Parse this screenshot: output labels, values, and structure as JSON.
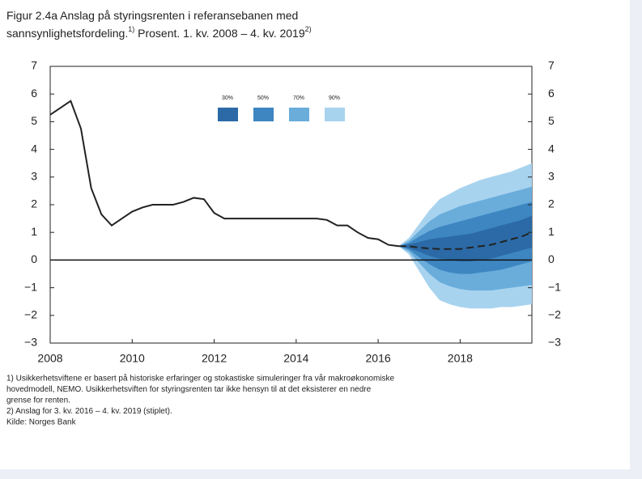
{
  "chart_data": {
    "type": "fan",
    "title": {
      "line1": "Figur 2.4a Anslag på styringsrenten i referansebanen med",
      "line2": "sannsynlighetsfordeling.",
      "sup1": "1)",
      "line2b": " Prosent. 1. kv. 2008 – 4. kv. 2019",
      "sup2": "2)"
    },
    "x": [
      2008,
      2008.25,
      2008.5,
      2008.75,
      2009,
      2009.25,
      2009.5,
      2009.75,
      2010,
      2010.25,
      2010.5,
      2010.75,
      2011,
      2011.25,
      2011.5,
      2011.75,
      2012,
      2012.25,
      2012.5,
      2012.75,
      2013,
      2013.25,
      2013.5,
      2013.75,
      2014,
      2014.25,
      2014.5,
      2014.75,
      2015,
      2015.25,
      2015.5,
      2015.75,
      2016,
      2016.25,
      2016.5,
      2016.75,
      2017,
      2017.25,
      2017.5,
      2017.75,
      2018,
      2018.25,
      2018.5,
      2018.75,
      2019,
      2019.25,
      2019.5,
      2019.75
    ],
    "series": [
      {
        "color": "#222222",
        "dashed": false,
        "values": [
          5.25,
          5.5,
          5.75,
          4.75,
          2.6,
          1.65,
          1.25,
          1.5,
          1.75,
          1.9,
          2.0,
          2.0,
          2.0,
          2.1,
          2.25,
          2.2,
          1.7,
          1.5,
          1.5,
          1.5,
          1.5,
          1.5,
          1.5,
          1.5,
          1.5,
          1.5,
          1.5,
          1.45,
          1.25,
          1.25,
          1.0,
          0.8,
          0.75,
          0.55,
          0.5,
          null,
          null,
          null,
          null,
          null,
          null,
          null,
          null,
          null,
          null,
          null,
          null,
          null
        ]
      },
      {
        "color": "#222222",
        "dashed": true,
        "values": [
          null,
          null,
          null,
          null,
          null,
          null,
          null,
          null,
          null,
          null,
          null,
          null,
          null,
          null,
          null,
          null,
          null,
          null,
          null,
          null,
          null,
          null,
          null,
          null,
          null,
          null,
          null,
          null,
          null,
          null,
          null,
          null,
          null,
          null,
          0.5,
          0.5,
          0.45,
          0.42,
          0.4,
          0.4,
          0.4,
          0.45,
          0.5,
          0.55,
          0.65,
          0.75,
          0.85,
          1.0
        ]
      }
    ],
    "bands": [
      {
        "name": "30%",
        "color": "#2b6aa6",
        "upper": [
          null,
          null,
          null,
          null,
          null,
          null,
          null,
          null,
          null,
          null,
          null,
          null,
          null,
          null,
          null,
          null,
          null,
          null,
          null,
          null,
          null,
          null,
          null,
          null,
          null,
          null,
          null,
          null,
          null,
          null,
          null,
          null,
          null,
          null,
          0.5,
          0.57,
          0.65,
          0.75,
          0.8,
          0.85,
          0.9,
          0.95,
          1.05,
          1.15,
          1.25,
          1.35,
          1.45,
          1.6
        ],
        "lower": [
          null,
          null,
          null,
          null,
          null,
          null,
          null,
          null,
          null,
          null,
          null,
          null,
          null,
          null,
          null,
          null,
          null,
          null,
          null,
          null,
          null,
          null,
          null,
          null,
          null,
          null,
          null,
          null,
          null,
          null,
          null,
          null,
          null,
          null,
          0.5,
          0.43,
          0.3,
          0.15,
          0.05,
          0.0,
          -0.05,
          -0.05,
          0.0,
          0.05,
          0.15,
          0.25,
          0.35,
          0.45
        ]
      },
      {
        "name": "50%",
        "color": "#3d86c2",
        "upper": [
          null,
          null,
          null,
          null,
          null,
          null,
          null,
          null,
          null,
          null,
          null,
          null,
          null,
          null,
          null,
          null,
          null,
          null,
          null,
          null,
          null,
          null,
          null,
          null,
          null,
          null,
          null,
          null,
          null,
          null,
          null,
          null,
          null,
          null,
          0.5,
          0.62,
          0.85,
          1.05,
          1.2,
          1.3,
          1.4,
          1.5,
          1.6,
          1.7,
          1.8,
          1.9,
          2.0,
          2.1
        ],
        "lower": [
          null,
          null,
          null,
          null,
          null,
          null,
          null,
          null,
          null,
          null,
          null,
          null,
          null,
          null,
          null,
          null,
          null,
          null,
          null,
          null,
          null,
          null,
          null,
          null,
          null,
          null,
          null,
          null,
          null,
          null,
          null,
          null,
          null,
          null,
          0.5,
          0.38,
          0.1,
          -0.15,
          -0.35,
          -0.45,
          -0.5,
          -0.5,
          -0.45,
          -0.4,
          -0.35,
          -0.25,
          -0.15,
          -0.05
        ]
      },
      {
        "name": "70%",
        "color": "#6aaddb",
        "upper": [
          null,
          null,
          null,
          null,
          null,
          null,
          null,
          null,
          null,
          null,
          null,
          null,
          null,
          null,
          null,
          null,
          null,
          null,
          null,
          null,
          null,
          null,
          null,
          null,
          null,
          null,
          null,
          null,
          null,
          null,
          null,
          null,
          null,
          null,
          0.5,
          0.7,
          1.05,
          1.4,
          1.65,
          1.8,
          1.95,
          2.05,
          2.15,
          2.25,
          2.35,
          2.45,
          2.55,
          2.65
        ],
        "lower": [
          null,
          null,
          null,
          null,
          null,
          null,
          null,
          null,
          null,
          null,
          null,
          null,
          null,
          null,
          null,
          null,
          null,
          null,
          null,
          null,
          null,
          null,
          null,
          null,
          null,
          null,
          null,
          null,
          null,
          null,
          null,
          null,
          null,
          null,
          0.5,
          0.3,
          -0.1,
          -0.5,
          -0.8,
          -0.95,
          -1.05,
          -1.1,
          -1.1,
          -1.1,
          -1.05,
          -1.0,
          -0.95,
          -0.9
        ]
      },
      {
        "name": "90%",
        "color": "#a8d3ef",
        "upper": [
          null,
          null,
          null,
          null,
          null,
          null,
          null,
          null,
          null,
          null,
          null,
          null,
          null,
          null,
          null,
          null,
          null,
          null,
          null,
          null,
          null,
          null,
          null,
          null,
          null,
          null,
          null,
          null,
          null,
          null,
          null,
          null,
          null,
          null,
          0.5,
          0.8,
          1.3,
          1.8,
          2.2,
          2.4,
          2.6,
          2.75,
          2.9,
          3.0,
          3.1,
          3.2,
          3.35,
          3.5
        ],
        "lower": [
          null,
          null,
          null,
          null,
          null,
          null,
          null,
          null,
          null,
          null,
          null,
          null,
          null,
          null,
          null,
          null,
          null,
          null,
          null,
          null,
          null,
          null,
          null,
          null,
          null,
          null,
          null,
          null,
          null,
          null,
          null,
          null,
          null,
          null,
          0.5,
          0.2,
          -0.4,
          -1.0,
          -1.45,
          -1.6,
          -1.7,
          -1.75,
          -1.75,
          -1.75,
          -1.7,
          -1.7,
          -1.65,
          -1.6
        ]
      }
    ],
    "xlim": [
      2008,
      2019.75
    ],
    "xticks": [
      2008,
      2010,
      2012,
      2014,
      2016,
      2018
    ],
    "ylim": [
      -3,
      7
    ],
    "yticks": [
      {
        "value": -3,
        "label": "−3"
      },
      {
        "value": -2,
        "label": "−2"
      },
      {
        "value": -1,
        "label": "−1"
      },
      0,
      1,
      2,
      3,
      4,
      5,
      6,
      7
    ],
    "hline": 0,
    "notes": [
      "1) Usikkerhetsviftene er basert på historiske erfaringer og stokastiske simuleringer fra vår makroøkonomiske",
      "hovedmodell, NEMO. Usikkerhetsviften for styringsrenten tar ikke hensyn til at det eksisterer en nedre",
      "grense for renten.",
      "2) Anslag for 3. kv. 2016 – 4. kv. 2019 (stiplet).",
      "Kilde: Norges Bank"
    ]
  }
}
